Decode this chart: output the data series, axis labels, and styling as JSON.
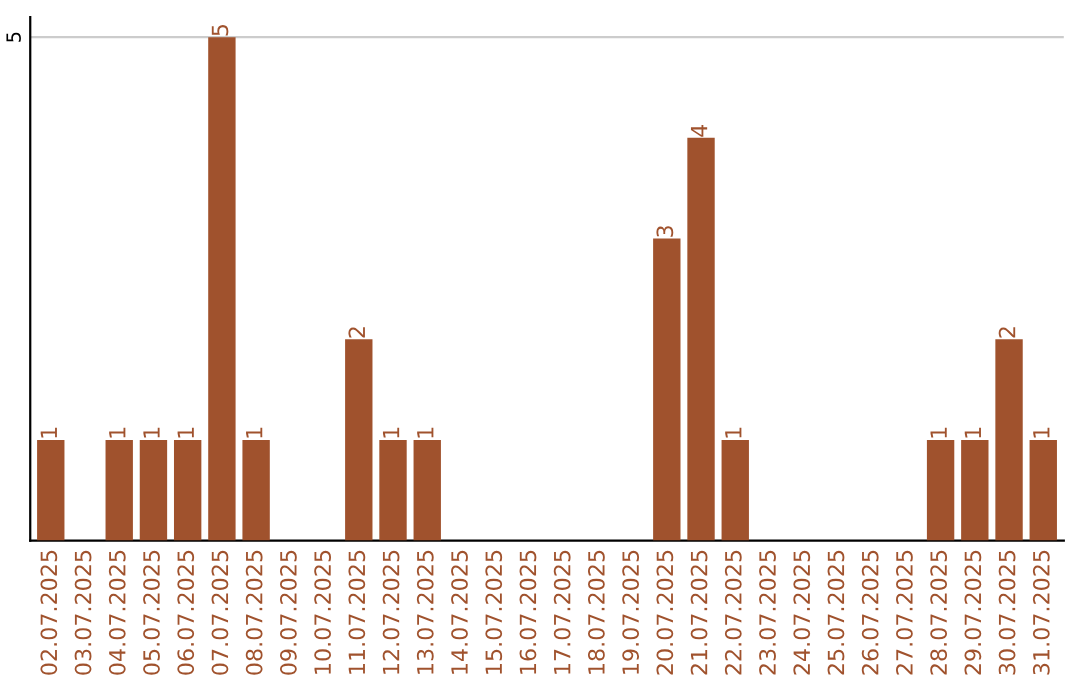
{
  "chart_data": {
    "type": "bar",
    "categories": [
      "02.07.2025",
      "03.07.2025",
      "04.07.2025",
      "05.07.2025",
      "06.07.2025",
      "07.07.2025",
      "08.07.2025",
      "09.07.2025",
      "10.07.2025",
      "11.07.2025",
      "12.07.2025",
      "13.07.2025",
      "14.07.2025",
      "15.07.2025",
      "16.07.2025",
      "17.07.2025",
      "18.07.2025",
      "19.07.2025",
      "20.07.2025",
      "21.07.2025",
      "22.07.2025",
      "23.07.2025",
      "24.07.2025",
      "25.07.2025",
      "26.07.2025",
      "27.07.2025",
      "28.07.2025",
      "29.07.2025",
      "30.07.2025",
      "31.07.2025"
    ],
    "values": [
      1,
      0,
      1,
      1,
      1,
      5,
      1,
      0,
      0,
      2,
      1,
      1,
      0,
      0,
      0,
      0,
      0,
      0,
      3,
      4,
      1,
      0,
      0,
      0,
      0,
      0,
      1,
      1,
      2,
      1
    ],
    "value_labels": [
      "1",
      null,
      "1",
      "1",
      "1",
      "5",
      "1",
      null,
      null,
      "2",
      "1",
      "1",
      null,
      null,
      null,
      null,
      null,
      null,
      "3",
      "4",
      "1",
      null,
      null,
      null,
      null,
      null,
      "1",
      "1",
      "2",
      "1"
    ],
    "color": "#a0522d",
    "ylim": [
      0,
      5.2
    ],
    "yticks": [
      5
    ],
    "grid": "y"
  }
}
